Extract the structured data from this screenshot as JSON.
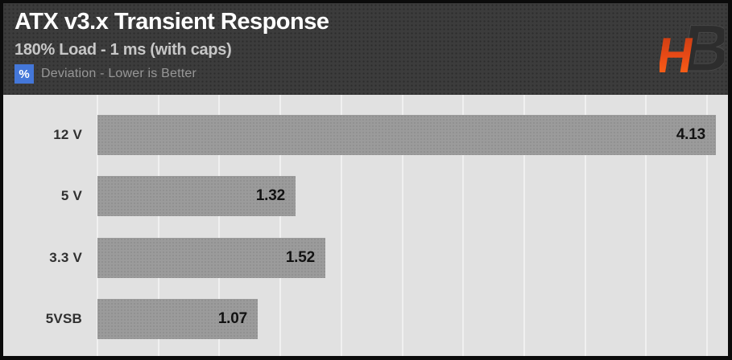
{
  "header": {
    "title": "ATX v3.x Transient Response",
    "subtitle": "180% Load - 1 ms (with caps)",
    "unit_badge": "%",
    "note": "Deviation - Lower is Better",
    "logo_name": "hardware-busters-logo"
  },
  "colors": {
    "frame_border": "#0b0b0b",
    "header_bg": "#3c3c3c",
    "title_text": "#ffffff",
    "subtitle_text": "#c7c7c7",
    "note_text": "#979797",
    "badge_bg": "#4477d9",
    "chart_bg": "#e1e1e1",
    "gridline": "#f0f0f0",
    "bar_fill": "#9b9b9b",
    "bar_value_text": "#121212",
    "category_text": "#303030",
    "logo_h_gradient_top": "#c23a12",
    "logo_h_gradient_bottom": "#ff6a18",
    "logo_b_fill": "#2d2d2d"
  },
  "chart_data": {
    "type": "bar",
    "orientation": "horizontal",
    "title": "ATX v3.x Transient Response",
    "subtitle": "180% Load - 1 ms (with caps)",
    "note": "Deviation - Lower is Better",
    "value_unit": "%",
    "categories": [
      "12 V",
      "5 V",
      "3.3 V",
      "5VSB"
    ],
    "values": [
      4.13,
      1.32,
      1.52,
      1.07
    ],
    "value_labels_decimals": 2,
    "value_label_position": "inside-end",
    "xlim": [
      0,
      4.2
    ],
    "grid": true,
    "gridline_count": 11,
    "legend": "none"
  }
}
